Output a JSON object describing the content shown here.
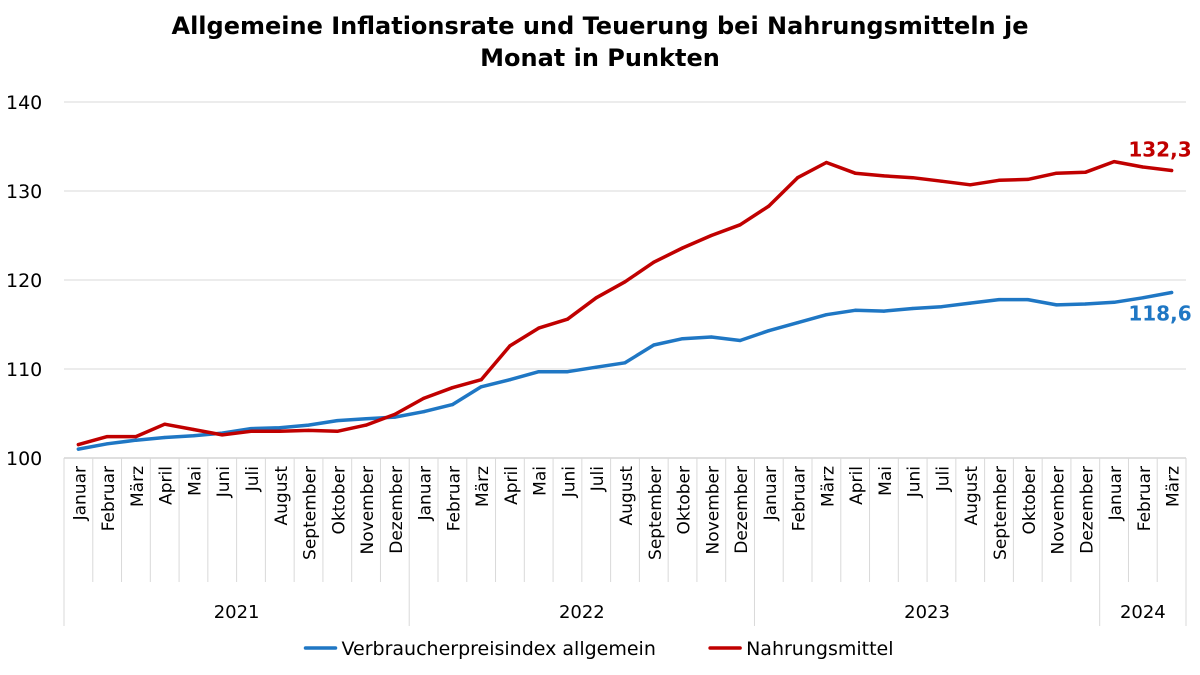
{
  "chart_data": {
    "type": "line",
    "title": "Allgemeine Inflationsrate und Teuerung bei Nahrungsmitteln je",
    "subtitle": "Monat in Punkten",
    "xlabel": "",
    "ylabel": "",
    "ylim": [
      100,
      140
    ],
    "yticks": [
      "100",
      "110",
      "120",
      "130",
      "140"
    ],
    "grid": true,
    "legend_position": "bottom",
    "x": [
      "Januar",
      "Februar",
      "März",
      "April",
      "Mai",
      "Juni",
      "Juli",
      "August",
      "September",
      "Oktober",
      "November",
      "Dezember",
      "Januar",
      "Februar",
      "März",
      "April",
      "Mai",
      "Juni",
      "Juli",
      "August",
      "September",
      "Oktober",
      "November",
      "Dezember",
      "Januar",
      "Februar",
      "März",
      "April",
      "Mai",
      "Juni",
      "Juli",
      "August",
      "September",
      "Oktober",
      "November",
      "Dezember",
      "Januar",
      "Februar",
      "März"
    ],
    "years": [
      {
        "label": "2021",
        "start": 0,
        "count": 12
      },
      {
        "label": "2022",
        "start": 12,
        "count": 12
      },
      {
        "label": "2023",
        "start": 24,
        "count": 12
      },
      {
        "label": "2024",
        "start": 36,
        "count": 3
      }
    ],
    "series": [
      {
        "name": "Verbraucherpreisindex allgemein",
        "color": "#1f77c4",
        "end_label": "118,6",
        "values": [
          101.0,
          101.6,
          102.0,
          102.3,
          102.5,
          102.8,
          103.3,
          103.4,
          103.7,
          104.2,
          104.4,
          104.6,
          105.2,
          106.0,
          108.0,
          108.8,
          109.7,
          109.7,
          110.2,
          110.7,
          112.7,
          113.4,
          113.6,
          113.2,
          114.3,
          115.2,
          116.1,
          116.6,
          116.5,
          116.8,
          117.0,
          117.4,
          117.8,
          117.8,
          117.2,
          117.3,
          117.5,
          118.0,
          118.6
        ]
      },
      {
        "name": "Nahrungsmittel",
        "color": "#c00000",
        "end_label": "132,3",
        "values": [
          101.5,
          102.4,
          102.4,
          103.8,
          103.2,
          102.6,
          103.0,
          103.0,
          103.1,
          103.0,
          103.7,
          104.9,
          106.7,
          107.9,
          108.8,
          112.6,
          114.6,
          115.6,
          118.0,
          119.8,
          122.0,
          123.6,
          125.0,
          126.2,
          128.3,
          131.5,
          133.2,
          132.0,
          131.7,
          131.5,
          131.1,
          130.7,
          131.2,
          131.3,
          132.0,
          132.1,
          133.3,
          132.7,
          132.3
        ]
      }
    ]
  }
}
